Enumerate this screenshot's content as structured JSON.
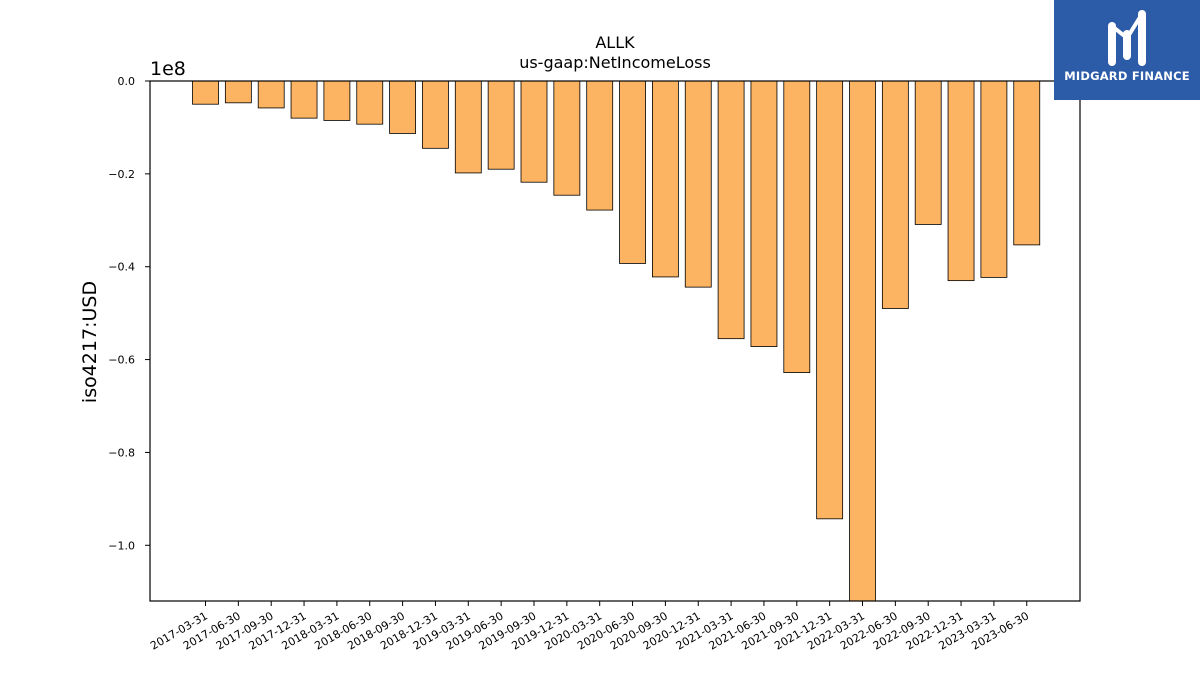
{
  "brand": {
    "name": "MIDGARD FINANCE",
    "color": "#2c5ba8",
    "mark_icon": "midgard-logo-icon"
  },
  "chart_data": {
    "type": "bar",
    "title": "ALLK",
    "subtitle": "us-gaap:NetIncomeLoss",
    "xlabel": "",
    "ylabel": "iso4217:USD",
    "y_scale_label": "1e8",
    "y_scale": 100000000,
    "ylim": [
      -1.12,
      0.0
    ],
    "yticks": [
      {
        "value": 0.0,
        "label": "0.0"
      },
      {
        "value": -0.2,
        "label": "−0.2"
      },
      {
        "value": -0.4,
        "label": "−0.4"
      },
      {
        "value": -0.6,
        "label": "−0.6"
      },
      {
        "value": -0.8,
        "label": "−0.8"
      },
      {
        "value": -1.0,
        "label": "−1.0"
      }
    ],
    "grid": false,
    "bar_color": "#fdb462",
    "bar_edge_color": "#000000",
    "categories": [
      "2017-03-31",
      "2017-06-30",
      "2017-09-30",
      "2017-12-31",
      "2018-03-31",
      "2018-06-30",
      "2018-09-30",
      "2018-12-31",
      "2019-03-31",
      "2019-06-30",
      "2019-09-30",
      "2019-12-31",
      "2020-03-31",
      "2020-06-30",
      "2020-09-30",
      "2020-12-31",
      "2021-03-31",
      "2021-06-30",
      "2021-09-30",
      "2021-12-31",
      "2022-03-31",
      "2022-06-30",
      "2022-09-30",
      "2022-12-31",
      "2023-03-31",
      "2023-06-30"
    ],
    "values": [
      -0.05,
      -0.047,
      -0.058,
      -0.08,
      -0.085,
      -0.093,
      -0.113,
      -0.145,
      -0.198,
      -0.19,
      -0.218,
      -0.246,
      -0.278,
      -0.393,
      -0.422,
      -0.444,
      -0.555,
      -0.572,
      -0.628,
      -0.943,
      -1.12,
      -0.49,
      -0.309,
      -0.43,
      -0.423,
      -0.353
    ]
  }
}
